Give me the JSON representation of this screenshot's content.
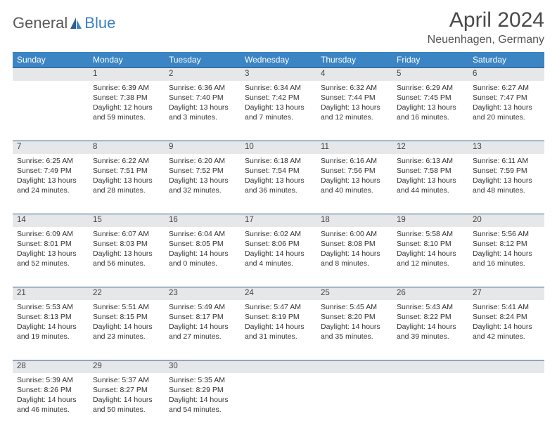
{
  "logo": {
    "text1": "General",
    "text2": "Blue"
  },
  "title": "April 2024",
  "subtitle": "Neuenhagen, Germany",
  "weekdays": [
    "Sunday",
    "Monday",
    "Tuesday",
    "Wednesday",
    "Thursday",
    "Friday",
    "Saturday"
  ],
  "colors": {
    "header_bg": "#3b85c4",
    "header_text": "#ffffff",
    "daynum_bg": "#e6e7e8",
    "daynum_border": "#2f5f8f",
    "title_color": "#4a4a4a",
    "logo_gray": "#58595b",
    "logo_blue": "#3b7fc4"
  },
  "weeks": [
    {
      "days": [
        {
          "num": "",
          "lines": [
            "",
            "",
            "",
            ""
          ]
        },
        {
          "num": "1",
          "lines": [
            "Sunrise: 6:39 AM",
            "Sunset: 7:38 PM",
            "Daylight: 12 hours",
            "and 59 minutes."
          ]
        },
        {
          "num": "2",
          "lines": [
            "Sunrise: 6:36 AM",
            "Sunset: 7:40 PM",
            "Daylight: 13 hours",
            "and 3 minutes."
          ]
        },
        {
          "num": "3",
          "lines": [
            "Sunrise: 6:34 AM",
            "Sunset: 7:42 PM",
            "Daylight: 13 hours",
            "and 7 minutes."
          ]
        },
        {
          "num": "4",
          "lines": [
            "Sunrise: 6:32 AM",
            "Sunset: 7:44 PM",
            "Daylight: 13 hours",
            "and 12 minutes."
          ]
        },
        {
          "num": "5",
          "lines": [
            "Sunrise: 6:29 AM",
            "Sunset: 7:45 PM",
            "Daylight: 13 hours",
            "and 16 minutes."
          ]
        },
        {
          "num": "6",
          "lines": [
            "Sunrise: 6:27 AM",
            "Sunset: 7:47 PM",
            "Daylight: 13 hours",
            "and 20 minutes."
          ]
        }
      ]
    },
    {
      "days": [
        {
          "num": "7",
          "lines": [
            "Sunrise: 6:25 AM",
            "Sunset: 7:49 PM",
            "Daylight: 13 hours",
            "and 24 minutes."
          ]
        },
        {
          "num": "8",
          "lines": [
            "Sunrise: 6:22 AM",
            "Sunset: 7:51 PM",
            "Daylight: 13 hours",
            "and 28 minutes."
          ]
        },
        {
          "num": "9",
          "lines": [
            "Sunrise: 6:20 AM",
            "Sunset: 7:52 PM",
            "Daylight: 13 hours",
            "and 32 minutes."
          ]
        },
        {
          "num": "10",
          "lines": [
            "Sunrise: 6:18 AM",
            "Sunset: 7:54 PM",
            "Daylight: 13 hours",
            "and 36 minutes."
          ]
        },
        {
          "num": "11",
          "lines": [
            "Sunrise: 6:16 AM",
            "Sunset: 7:56 PM",
            "Daylight: 13 hours",
            "and 40 minutes."
          ]
        },
        {
          "num": "12",
          "lines": [
            "Sunrise: 6:13 AM",
            "Sunset: 7:58 PM",
            "Daylight: 13 hours",
            "and 44 minutes."
          ]
        },
        {
          "num": "13",
          "lines": [
            "Sunrise: 6:11 AM",
            "Sunset: 7:59 PM",
            "Daylight: 13 hours",
            "and 48 minutes."
          ]
        }
      ]
    },
    {
      "days": [
        {
          "num": "14",
          "lines": [
            "Sunrise: 6:09 AM",
            "Sunset: 8:01 PM",
            "Daylight: 13 hours",
            "and 52 minutes."
          ]
        },
        {
          "num": "15",
          "lines": [
            "Sunrise: 6:07 AM",
            "Sunset: 8:03 PM",
            "Daylight: 13 hours",
            "and 56 minutes."
          ]
        },
        {
          "num": "16",
          "lines": [
            "Sunrise: 6:04 AM",
            "Sunset: 8:05 PM",
            "Daylight: 14 hours",
            "and 0 minutes."
          ]
        },
        {
          "num": "17",
          "lines": [
            "Sunrise: 6:02 AM",
            "Sunset: 8:06 PM",
            "Daylight: 14 hours",
            "and 4 minutes."
          ]
        },
        {
          "num": "18",
          "lines": [
            "Sunrise: 6:00 AM",
            "Sunset: 8:08 PM",
            "Daylight: 14 hours",
            "and 8 minutes."
          ]
        },
        {
          "num": "19",
          "lines": [
            "Sunrise: 5:58 AM",
            "Sunset: 8:10 PM",
            "Daylight: 14 hours",
            "and 12 minutes."
          ]
        },
        {
          "num": "20",
          "lines": [
            "Sunrise: 5:56 AM",
            "Sunset: 8:12 PM",
            "Daylight: 14 hours",
            "and 16 minutes."
          ]
        }
      ]
    },
    {
      "days": [
        {
          "num": "21",
          "lines": [
            "Sunrise: 5:53 AM",
            "Sunset: 8:13 PM",
            "Daylight: 14 hours",
            "and 19 minutes."
          ]
        },
        {
          "num": "22",
          "lines": [
            "Sunrise: 5:51 AM",
            "Sunset: 8:15 PM",
            "Daylight: 14 hours",
            "and 23 minutes."
          ]
        },
        {
          "num": "23",
          "lines": [
            "Sunrise: 5:49 AM",
            "Sunset: 8:17 PM",
            "Daylight: 14 hours",
            "and 27 minutes."
          ]
        },
        {
          "num": "24",
          "lines": [
            "Sunrise: 5:47 AM",
            "Sunset: 8:19 PM",
            "Daylight: 14 hours",
            "and 31 minutes."
          ]
        },
        {
          "num": "25",
          "lines": [
            "Sunrise: 5:45 AM",
            "Sunset: 8:20 PM",
            "Daylight: 14 hours",
            "and 35 minutes."
          ]
        },
        {
          "num": "26",
          "lines": [
            "Sunrise: 5:43 AM",
            "Sunset: 8:22 PM",
            "Daylight: 14 hours",
            "and 39 minutes."
          ]
        },
        {
          "num": "27",
          "lines": [
            "Sunrise: 5:41 AM",
            "Sunset: 8:24 PM",
            "Daylight: 14 hours",
            "and 42 minutes."
          ]
        }
      ]
    },
    {
      "days": [
        {
          "num": "28",
          "lines": [
            "Sunrise: 5:39 AM",
            "Sunset: 8:26 PM",
            "Daylight: 14 hours",
            "and 46 minutes."
          ]
        },
        {
          "num": "29",
          "lines": [
            "Sunrise: 5:37 AM",
            "Sunset: 8:27 PM",
            "Daylight: 14 hours",
            "and 50 minutes."
          ]
        },
        {
          "num": "30",
          "lines": [
            "Sunrise: 5:35 AM",
            "Sunset: 8:29 PM",
            "Daylight: 14 hours",
            "and 54 minutes."
          ]
        },
        {
          "num": "",
          "lines": [
            "",
            "",
            "",
            ""
          ]
        },
        {
          "num": "",
          "lines": [
            "",
            "",
            "",
            ""
          ]
        },
        {
          "num": "",
          "lines": [
            "",
            "",
            "",
            ""
          ]
        },
        {
          "num": "",
          "lines": [
            "",
            "",
            "",
            ""
          ]
        }
      ]
    }
  ]
}
